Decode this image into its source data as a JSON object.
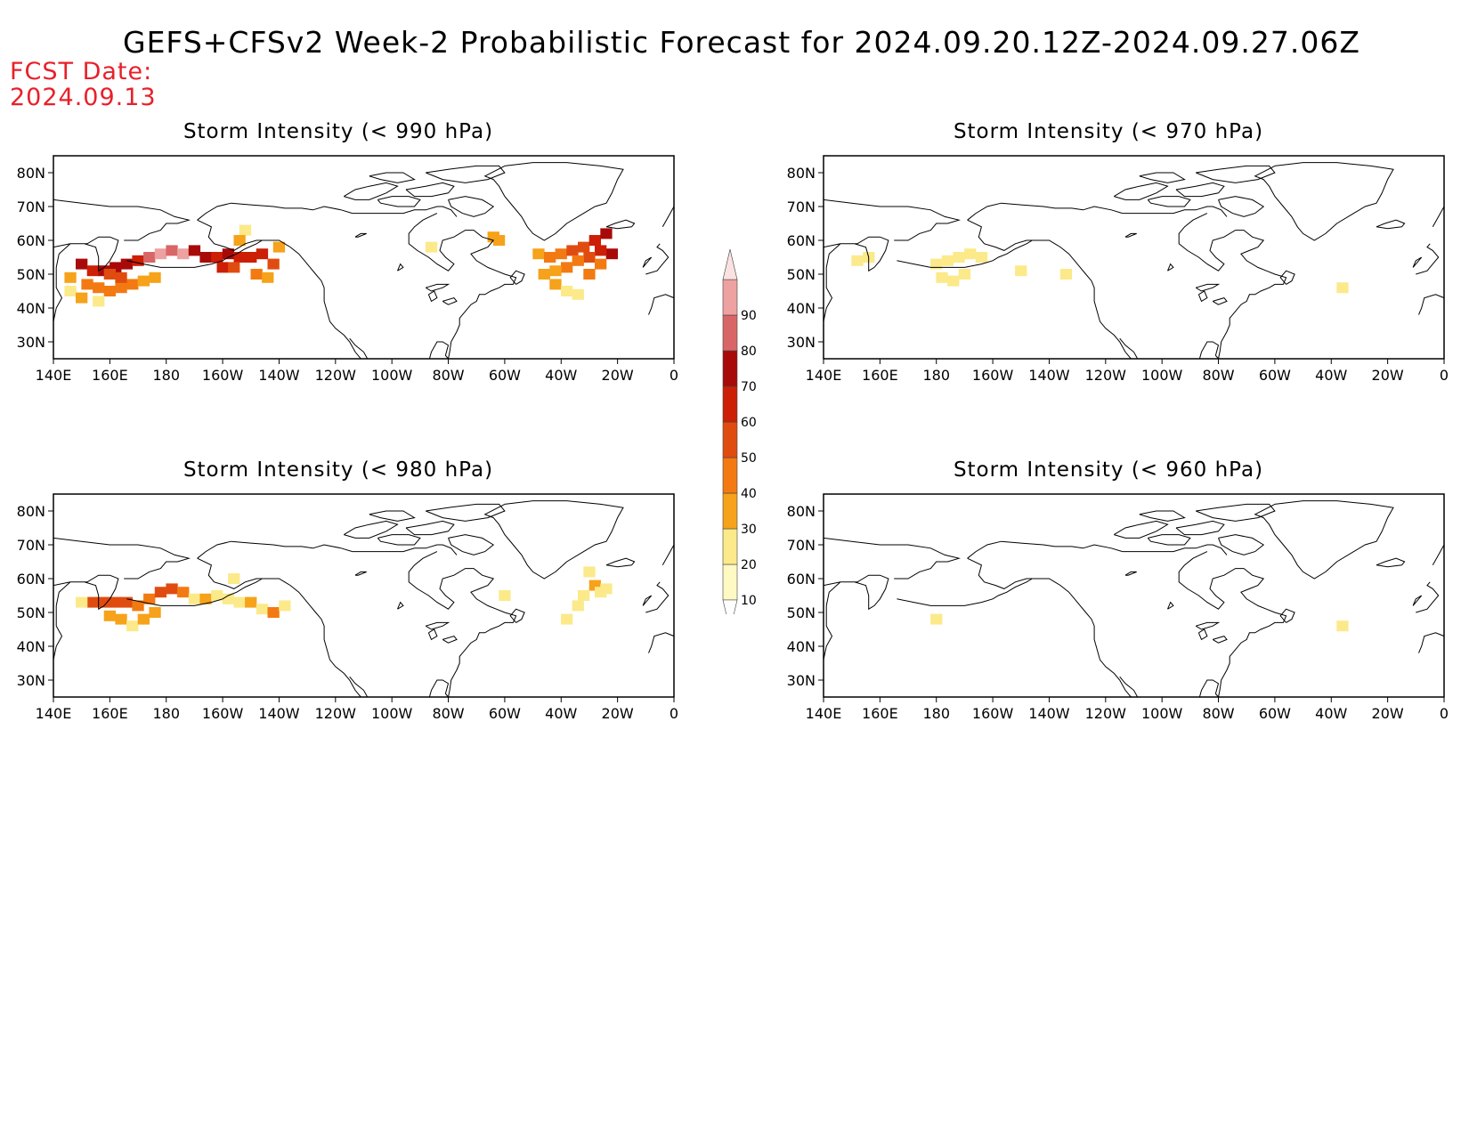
{
  "title": "GEFS+CFSv2 Week-2 Probabilistic Forecast for 2024.09.20.12Z-2024.09.27.06Z",
  "fcst_label": "FCST Date:",
  "fcst_date": "2024.09.13",
  "lon_ticks": [
    "140E",
    "160E",
    "180",
    "160W",
    "140W",
    "120W",
    "100W",
    "80W",
    "60W",
    "40W",
    "20W",
    "0"
  ],
  "lat_ticks": [
    "80N",
    "70N",
    "60N",
    "50N",
    "40N",
    "30N"
  ],
  "colorbar": {
    "levels": [
      "10",
      "20",
      "30",
      "40",
      "50",
      "60",
      "70",
      "80",
      "90"
    ],
    "colors": [
      "#fff9c4",
      "#fce98a",
      "#f6a21a",
      "#f37a12",
      "#e04c10",
      "#cc1f05",
      "#a80a0a",
      "#d96666",
      "#eda1a1",
      "#fbe2e2"
    ]
  },
  "panels": [
    {
      "id": "p990",
      "title": "Storm Intensity (< 990 hPa)",
      "cells": [
        [
          150,
          53,
          6
        ],
        [
          154,
          51,
          5
        ],
        [
          158,
          51,
          6
        ],
        [
          162,
          52,
          6
        ],
        [
          166,
          53,
          6
        ],
        [
          170,
          54,
          5
        ],
        [
          174,
          55,
          7
        ],
        [
          178,
          56,
          8
        ],
        [
          182,
          57,
          7
        ],
        [
          186,
          56,
          8
        ],
        [
          190,
          57,
          6
        ],
        [
          194,
          55,
          6
        ],
        [
          198,
          55,
          5
        ],
        [
          202,
          56,
          6
        ],
        [
          206,
          55,
          5
        ],
        [
          210,
          55,
          5
        ],
        [
          214,
          56,
          5
        ],
        [
          218,
          53,
          4
        ],
        [
          152,
          47,
          3
        ],
        [
          156,
          46,
          3
        ],
        [
          160,
          45,
          3
        ],
        [
          164,
          46,
          3
        ],
        [
          168,
          47,
          3
        ],
        [
          172,
          48,
          2
        ],
        [
          176,
          49,
          2
        ],
        [
          160,
          50,
          4
        ],
        [
          164,
          49,
          4
        ],
        [
          146,
          49,
          2
        ],
        [
          146,
          45,
          1
        ],
        [
          150,
          43,
          2
        ],
        [
          156,
          42,
          1
        ],
        [
          200,
          52,
          5
        ],
        [
          204,
          52,
          4
        ],
        [
          212,
          50,
          3
        ],
        [
          216,
          49,
          2
        ],
        [
          208,
          63,
          1
        ],
        [
          206,
          60,
          2
        ],
        [
          220,
          58,
          2
        ],
        [
          274,
          58,
          1
        ],
        [
          296,
          61,
          2
        ],
        [
          298,
          60,
          2
        ],
        [
          312,
          56,
          2
        ],
        [
          316,
          55,
          3
        ],
        [
          320,
          56,
          3
        ],
        [
          324,
          57,
          4
        ],
        [
          328,
          58,
          4
        ],
        [
          332,
          60,
          5
        ],
        [
          336,
          62,
          6
        ],
        [
          338,
          56,
          6
        ],
        [
          334,
          57,
          5
        ],
        [
          330,
          55,
          4
        ],
        [
          326,
          54,
          3
        ],
        [
          322,
          52,
          3
        ],
        [
          318,
          51,
          2
        ],
        [
          314,
          50,
          2
        ],
        [
          318,
          47,
          2
        ],
        [
          322,
          45,
          1
        ],
        [
          326,
          44,
          1
        ],
        [
          330,
          50,
          3
        ],
        [
          334,
          53,
          3
        ]
      ]
    },
    {
      "id": "p970",
      "title": "Storm Intensity (< 970 hPa)",
      "cells": [
        [
          152,
          54,
          1
        ],
        [
          156,
          55,
          1
        ],
        [
          180,
          53,
          1
        ],
        [
          184,
          54,
          1
        ],
        [
          188,
          55,
          1
        ],
        [
          192,
          56,
          1
        ],
        [
          196,
          55,
          1
        ],
        [
          182,
          49,
          1
        ],
        [
          186,
          48,
          1
        ],
        [
          190,
          50,
          1
        ],
        [
          210,
          51,
          1
        ],
        [
          226,
          50,
          1
        ],
        [
          324,
          46,
          1
        ]
      ]
    },
    {
      "id": "p980",
      "title": "Storm Intensity (< 980 hPa)",
      "cells": [
        [
          154,
          53,
          4
        ],
        [
          158,
          53,
          4
        ],
        [
          162,
          53,
          4
        ],
        [
          166,
          53,
          4
        ],
        [
          170,
          52,
          3
        ],
        [
          174,
          54,
          3
        ],
        [
          178,
          56,
          4
        ],
        [
          182,
          57,
          4
        ],
        [
          186,
          56,
          3
        ],
        [
          160,
          49,
          2
        ],
        [
          164,
          48,
          2
        ],
        [
          168,
          46,
          1
        ],
        [
          172,
          48,
          2
        ],
        [
          176,
          50,
          2
        ],
        [
          150,
          53,
          1
        ],
        [
          190,
          54,
          1
        ],
        [
          194,
          54,
          2
        ],
        [
          198,
          55,
          1
        ],
        [
          202,
          54,
          1
        ],
        [
          206,
          53,
          1
        ],
        [
          210,
          53,
          2
        ],
        [
          214,
          51,
          1
        ],
        [
          218,
          50,
          3
        ],
        [
          204,
          60,
          1
        ],
        [
          222,
          52,
          1
        ],
        [
          330,
          62,
          1
        ],
        [
          332,
          58,
          2
        ],
        [
          334,
          56,
          1
        ],
        [
          328,
          55,
          1
        ],
        [
          326,
          52,
          1
        ],
        [
          322,
          48,
          1
        ],
        [
          336,
          57,
          1
        ],
        [
          300,
          55,
          1
        ]
      ]
    },
    {
      "id": "p960",
      "title": "Storm Intensity (< 960 hPa)",
      "cells": [
        [
          180,
          48,
          1
        ],
        [
          324,
          46,
          1
        ]
      ]
    }
  ]
}
